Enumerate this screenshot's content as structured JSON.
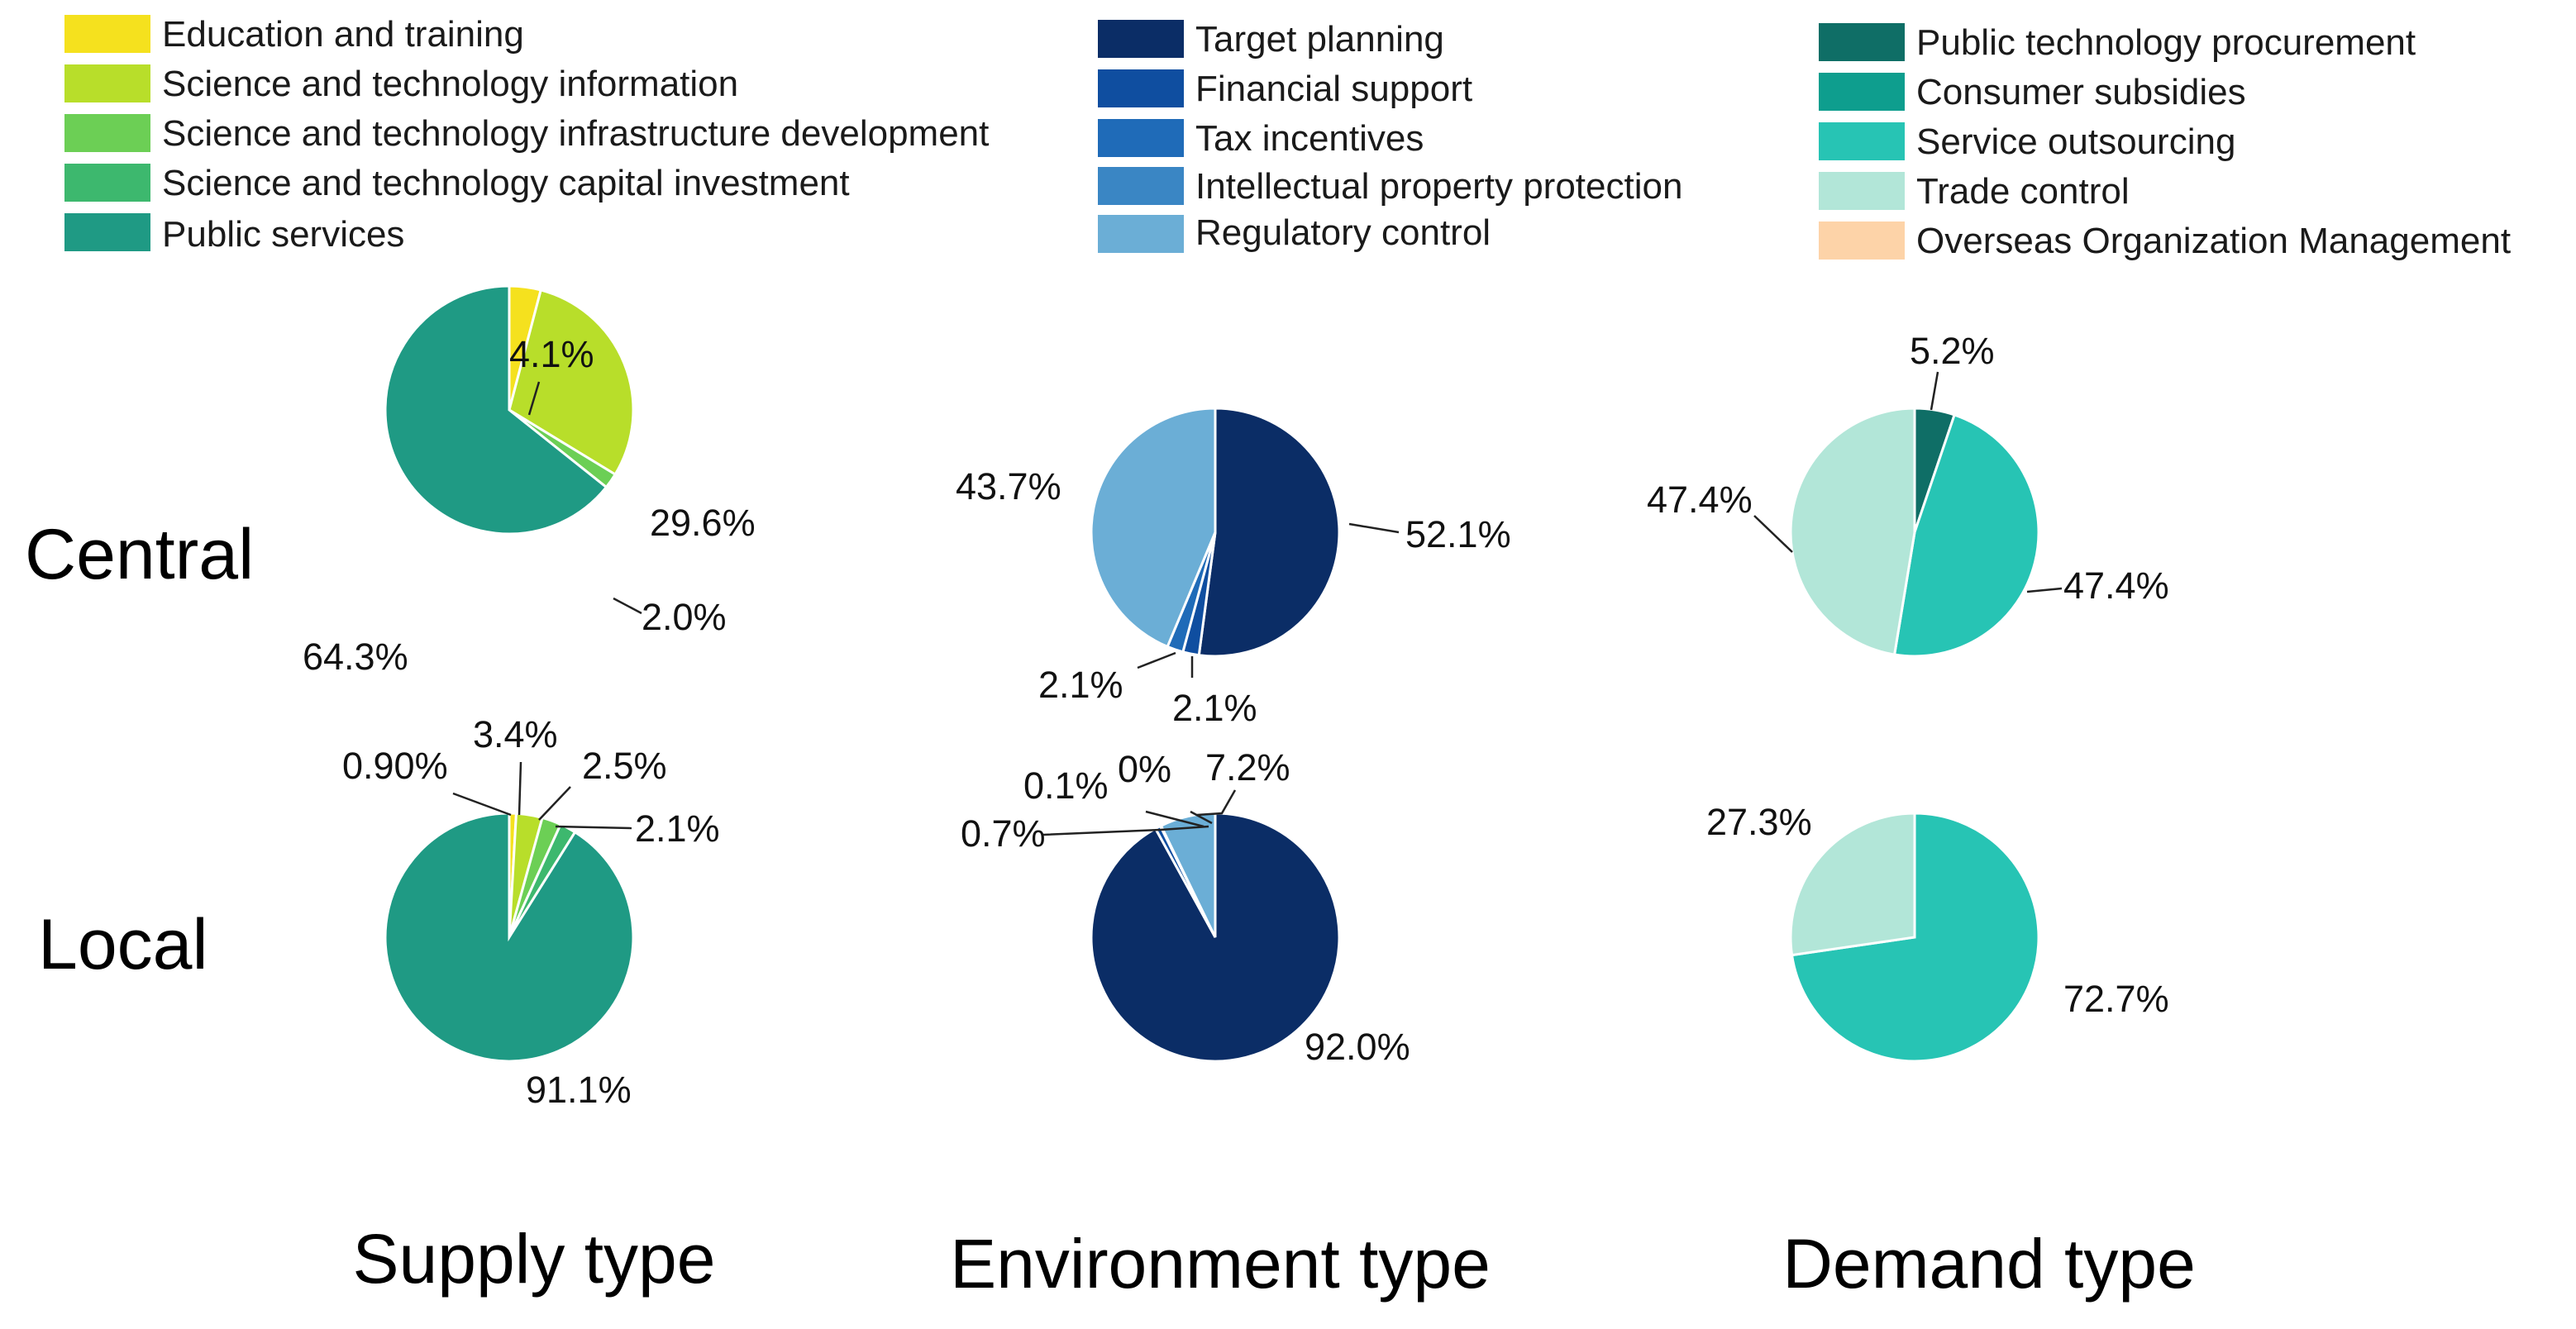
{
  "legend": {
    "supply": [
      {
        "key": "education",
        "label": "Education and training",
        "color": "#F5E11E"
      },
      {
        "key": "st_info",
        "label": "Science and technology information",
        "color": "#B8DE2A"
      },
      {
        "key": "st_infra",
        "label": "Science and technology infrastructure development",
        "color": "#6CCF55"
      },
      {
        "key": "st_capital",
        "label": "Science and technology capital investment",
        "color": "#3DB86E"
      },
      {
        "key": "public_services",
        "label": "Public services",
        "color": "#1F9A84"
      }
    ],
    "environment": [
      {
        "key": "target_planning",
        "label": "Target planning",
        "color": "#0B2D66"
      },
      {
        "key": "financial_support",
        "label": "Financial support",
        "color": "#0F4EA0"
      },
      {
        "key": "tax_incentives",
        "label": "Tax incentives",
        "color": "#1F6BB8"
      },
      {
        "key": "ip_protection",
        "label": "Intellectual property protection",
        "color": "#3A86C4"
      },
      {
        "key": "regulatory_control",
        "label": "Regulatory control",
        "color": "#6BAED6"
      }
    ],
    "demand": [
      {
        "key": "public_procurement",
        "label": "Public technology procurement",
        "color": "#0F6E66"
      },
      {
        "key": "consumer_subsidies",
        "label": "Consumer subsidies",
        "color": "#0E9E8E"
      },
      {
        "key": "service_outsourcing",
        "label": "Service outsourcing",
        "color": "#27C4B4"
      },
      {
        "key": "trade_control",
        "label": "Trade control",
        "color": "#B2E6D8"
      },
      {
        "key": "overseas_org",
        "label": "Overseas Organization Management",
        "color": "#FDD3A8"
      }
    ]
  },
  "row_labels": {
    "central": "Central",
    "local": "Local"
  },
  "column_labels": {
    "supply": "Supply type",
    "environment": "Environment type",
    "demand": "Demand type"
  },
  "chart_data": [
    {
      "type": "pie",
      "id": "supply-central",
      "title": "Supply type — Central",
      "slices": [
        {
          "key": "education",
          "value": 4.1,
          "label": "4.1%"
        },
        {
          "key": "st_info",
          "value": 29.6,
          "label": "29.6%"
        },
        {
          "key": "st_infra",
          "value": 2.0,
          "label": "2.0%"
        },
        {
          "key": "st_capital",
          "value": 0,
          "label": ""
        },
        {
          "key": "public_services",
          "value": 64.3,
          "label": "64.3%"
        }
      ]
    },
    {
      "type": "pie",
      "id": "supply-local",
      "title": "Supply type — Local",
      "slices": [
        {
          "key": "education",
          "value": 0.9,
          "label": "0.90%"
        },
        {
          "key": "st_info",
          "value": 3.4,
          "label": "3.4%"
        },
        {
          "key": "st_infra",
          "value": 2.5,
          "label": "2.5%"
        },
        {
          "key": "st_capital",
          "value": 2.1,
          "label": "2.1%"
        },
        {
          "key": "public_services",
          "value": 91.1,
          "label": "91.1%"
        }
      ]
    },
    {
      "type": "pie",
      "id": "environment-central",
      "title": "Environment type — Central",
      "slices": [
        {
          "key": "target_planning",
          "value": 52.1,
          "label": "52.1%"
        },
        {
          "key": "financial_support",
          "value": 2.1,
          "label": "2.1%"
        },
        {
          "key": "tax_incentives",
          "value": 2.1,
          "label": "2.1%"
        },
        {
          "key": "ip_protection",
          "value": 0,
          "label": ""
        },
        {
          "key": "regulatory_control",
          "value": 43.7,
          "label": "43.7%"
        }
      ]
    },
    {
      "type": "pie",
      "id": "environment-local",
      "title": "Environment type — Local",
      "slices": [
        {
          "key": "target_planning",
          "value": 92.0,
          "label": "92.0%"
        },
        {
          "key": "financial_support",
          "value": 0.7,
          "label": "0.7%"
        },
        {
          "key": "tax_incentives",
          "value": 0.1,
          "label": "0.1%"
        },
        {
          "key": "ip_protection",
          "value": 0,
          "label": "0%"
        },
        {
          "key": "regulatory_control",
          "value": 7.2,
          "label": "7.2%"
        }
      ]
    },
    {
      "type": "pie",
      "id": "demand-central",
      "title": "Demand type — Central",
      "slices": [
        {
          "key": "public_procurement",
          "value": 5.2,
          "label": "5.2%"
        },
        {
          "key": "consumer_subsidies",
          "value": 0,
          "label": ""
        },
        {
          "key": "service_outsourcing",
          "value": 47.4,
          "label": "47.4%"
        },
        {
          "key": "trade_control",
          "value": 47.4,
          "label": "47.4%"
        },
        {
          "key": "overseas_org",
          "value": 0,
          "label": ""
        }
      ]
    },
    {
      "type": "pie",
      "id": "demand-local",
      "title": "Demand type — Local",
      "slices": [
        {
          "key": "public_procurement",
          "value": 0,
          "label": ""
        },
        {
          "key": "consumer_subsidies",
          "value": 0,
          "label": ""
        },
        {
          "key": "service_outsourcing",
          "value": 72.7,
          "label": "72.7%"
        },
        {
          "key": "trade_control",
          "value": 27.3,
          "label": "27.3%"
        },
        {
          "key": "overseas_org",
          "value": 0,
          "label": ""
        }
      ]
    }
  ]
}
